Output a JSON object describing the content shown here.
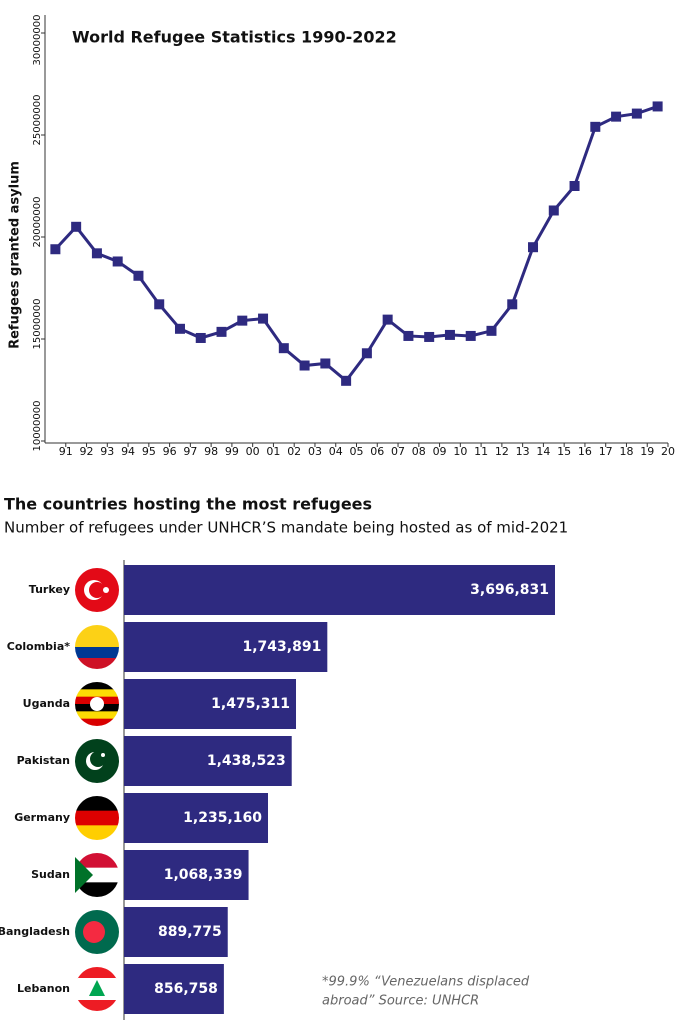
{
  "chart_data": [
    {
      "type": "line",
      "title": "World Refugee Statistics 1990-2022",
      "y_label": "Refugees granted asylum",
      "categories": [
        "91",
        "92",
        "93",
        "94",
        "95",
        "96",
        "97",
        "98",
        "99",
        "00",
        "01",
        "02",
        "03",
        "04",
        "05",
        "06",
        "07",
        "08",
        "09",
        "10",
        "11",
        "12",
        "13",
        "14",
        "15",
        "16",
        "17",
        "18",
        "19",
        "20"
      ],
      "values": [
        19400000,
        20500000,
        19200000,
        18800000,
        18100000,
        16700000,
        15500000,
        15050000,
        15350000,
        15900000,
        16000000,
        14550000,
        13700000,
        13800000,
        12950000,
        14300000,
        15950000,
        15150000,
        15100000,
        15200000,
        15150000,
        15400000,
        16700000,
        19500000,
        21300000,
        22500000,
        25400000,
        25900000,
        26050000,
        26400000
      ],
      "color": "#2e2a80",
      "ylim": [
        10000000,
        30000000
      ],
      "yticks": [
        10000000,
        15000000,
        20000000,
        25000000,
        30000000
      ]
    },
    {
      "type": "hbar",
      "title": "The countries hosting the most refugees",
      "subtitle": "Number of refugees under UNHCR’S mandate being hosted as of mid-2021",
      "categories": [
        "Turkey",
        "Colombia*",
        "Uganda",
        "Pakistan",
        "Germany",
        "Sudan",
        "Bangladesh",
        "Lebanon"
      ],
      "values": [
        3696831,
        1743891,
        1475311,
        1438523,
        1235160,
        1068339,
        889775,
        856758
      ],
      "value_labels": [
        "3,696,831",
        "1,743,891",
        "1,475,311",
        "1,438,523",
        "1,235,160",
        "1,068,339",
        "889,775",
        "856,758"
      ],
      "color": "#2e2a80",
      "note": [
        "*99.9% “Venezuelans displaced",
        "abroad”  Source: UNHCR"
      ]
    }
  ]
}
